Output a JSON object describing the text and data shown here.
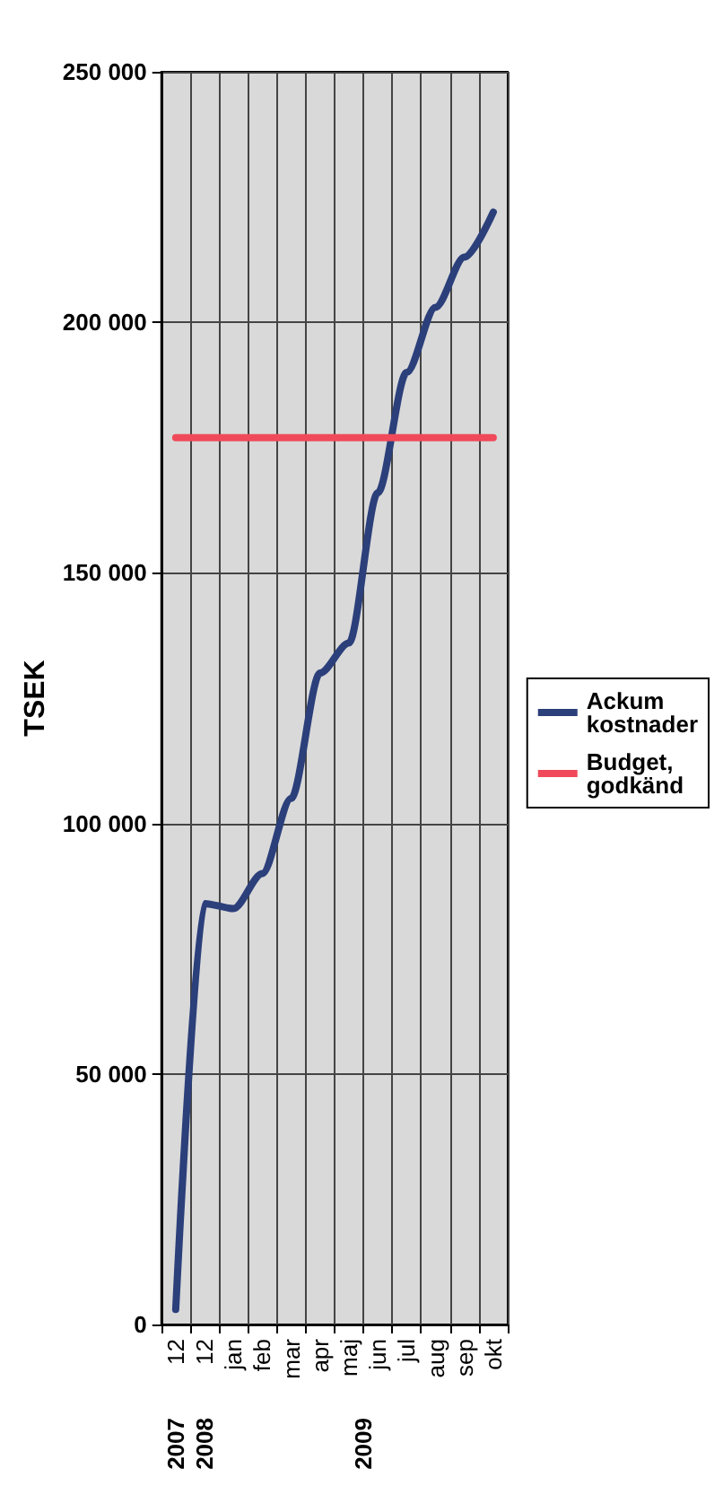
{
  "chart_data": {
    "type": "line",
    "ylabel": "TSEK",
    "categories": [
      "12",
      "12",
      "jan",
      "feb",
      "mar",
      "apr",
      "maj",
      "jun",
      "jul",
      "aug",
      "sep",
      "okt"
    ],
    "series": [
      {
        "name": "Ackum kostnader",
        "color": "#2b3f7a",
        "values": [
          3000,
          84000,
          83000,
          90000,
          105000,
          130000,
          136000,
          166000,
          190000,
          203000,
          213000,
          222000
        ]
      },
      {
        "name": "Budget, godkänd",
        "color": "#f04a5a",
        "values": [
          177000,
          177000,
          177000,
          177000,
          177000,
          177000,
          177000,
          177000,
          177000,
          177000,
          177000,
          177000
        ]
      }
    ],
    "ylim": [
      0,
      250000
    ],
    "yticks": [
      {
        "value": 0,
        "label": "0"
      },
      {
        "value": 50000,
        "label": "50 000"
      },
      {
        "value": 100000,
        "label": "100 000"
      },
      {
        "value": 150000,
        "label": "150 000"
      },
      {
        "value": 200000,
        "label": "200 000"
      },
      {
        "value": 250000,
        "label": "250 000"
      }
    ],
    "annotations": [
      "2007",
      "2008",
      "2009"
    ],
    "grid": true,
    "legend": "right",
    "marker": "none",
    "line_style": "solid"
  }
}
